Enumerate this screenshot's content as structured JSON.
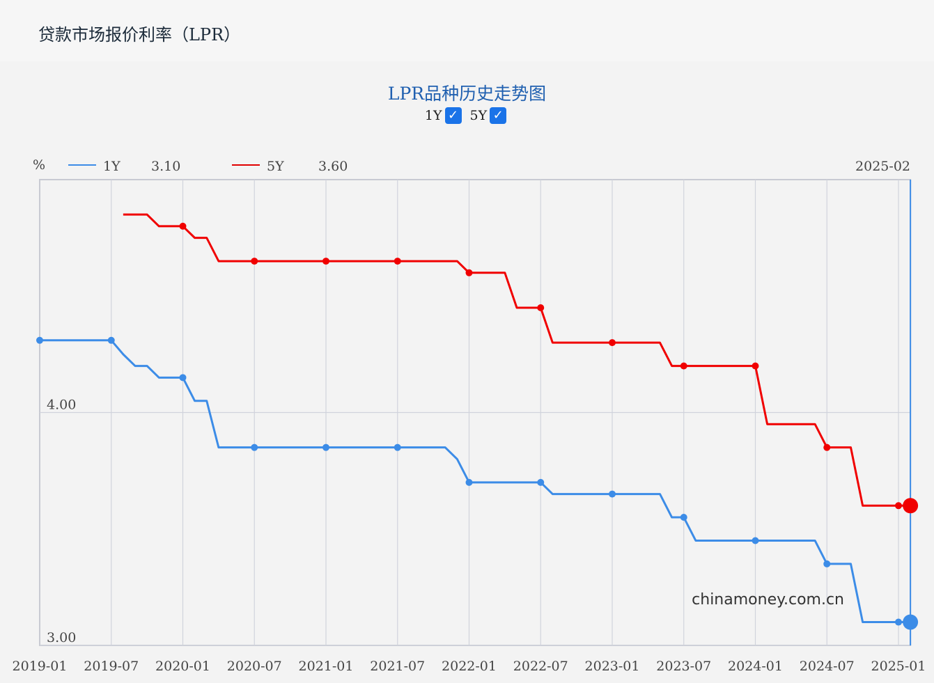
{
  "header": {
    "title": "贷款市场报价利率（LPR）"
  },
  "chart_title": "LPR品种历史走势图",
  "toggles": [
    {
      "label": "1Y",
      "checked": true
    },
    {
      "label": "5Y",
      "checked": true
    }
  ],
  "legend": {
    "unit": "%",
    "items": [
      {
        "name": "1Y",
        "value": "3.10",
        "color": "#3c8ce7"
      },
      {
        "name": "5Y",
        "value": "3.60",
        "color": "#f00000"
      }
    ],
    "hover_date": "2025-02"
  },
  "watermark": "chinamoney.com.cn",
  "chart_data": {
    "type": "line",
    "ylim": [
      3.0,
      5.0
    ],
    "yticks": [
      {
        "value": 4.0,
        "label": "4.00"
      },
      {
        "value": 3.0,
        "label": "3.00"
      }
    ],
    "xticks": [
      "2019-01",
      "2019-07",
      "2020-01",
      "2020-07",
      "2021-01",
      "2021-07",
      "2022-01",
      "2022-07",
      "2023-01",
      "2023-07",
      "2024-01",
      "2024-07",
      "2025-01"
    ],
    "x": [
      "2019-01",
      "2019-02",
      "2019-03",
      "2019-04",
      "2019-05",
      "2019-06",
      "2019-07",
      "2019-08",
      "2019-09",
      "2019-10",
      "2019-11",
      "2019-12",
      "2020-01",
      "2020-02",
      "2020-03",
      "2020-04",
      "2020-05",
      "2020-06",
      "2020-07",
      "2020-08",
      "2020-09",
      "2020-10",
      "2020-11",
      "2020-12",
      "2021-01",
      "2021-02",
      "2021-03",
      "2021-04",
      "2021-05",
      "2021-06",
      "2021-07",
      "2021-08",
      "2021-09",
      "2021-10",
      "2021-11",
      "2021-12",
      "2022-01",
      "2022-02",
      "2022-03",
      "2022-04",
      "2022-05",
      "2022-06",
      "2022-07",
      "2022-08",
      "2022-09",
      "2022-10",
      "2022-11",
      "2022-12",
      "2023-01",
      "2023-02",
      "2023-03",
      "2023-04",
      "2023-05",
      "2023-06",
      "2023-07",
      "2023-08",
      "2023-09",
      "2023-10",
      "2023-11",
      "2023-12",
      "2024-01",
      "2024-02",
      "2024-03",
      "2024-04",
      "2024-05",
      "2024-06",
      "2024-07",
      "2024-08",
      "2024-09",
      "2024-10",
      "2024-11",
      "2024-12",
      "2025-01",
      "2025-02"
    ],
    "series": [
      {
        "name": "1Y",
        "color": "#3c8ce7",
        "values": [
          4.31,
          4.31,
          4.31,
          4.31,
          4.31,
          4.31,
          4.31,
          4.25,
          4.2,
          4.2,
          4.15,
          4.15,
          4.15,
          4.05,
          4.05,
          3.85,
          3.85,
          3.85,
          3.85,
          3.85,
          3.85,
          3.85,
          3.85,
          3.85,
          3.85,
          3.85,
          3.85,
          3.85,
          3.85,
          3.85,
          3.85,
          3.85,
          3.85,
          3.85,
          3.85,
          3.8,
          3.7,
          3.7,
          3.7,
          3.7,
          3.7,
          3.7,
          3.7,
          3.65,
          3.65,
          3.65,
          3.65,
          3.65,
          3.65,
          3.65,
          3.65,
          3.65,
          3.65,
          3.55,
          3.55,
          3.45,
          3.45,
          3.45,
          3.45,
          3.45,
          3.45,
          3.45,
          3.45,
          3.45,
          3.45,
          3.45,
          3.35,
          3.35,
          3.35,
          3.1,
          3.1,
          3.1,
          3.1,
          3.1
        ]
      },
      {
        "name": "5Y",
        "color": "#f00000",
        "values": [
          null,
          null,
          null,
          null,
          null,
          null,
          null,
          4.85,
          4.85,
          4.85,
          4.8,
          4.8,
          4.8,
          4.75,
          4.75,
          4.65,
          4.65,
          4.65,
          4.65,
          4.65,
          4.65,
          4.65,
          4.65,
          4.65,
          4.65,
          4.65,
          4.65,
          4.65,
          4.65,
          4.65,
          4.65,
          4.65,
          4.65,
          4.65,
          4.65,
          4.65,
          4.6,
          4.6,
          4.6,
          4.6,
          4.45,
          4.45,
          4.45,
          4.3,
          4.3,
          4.3,
          4.3,
          4.3,
          4.3,
          4.3,
          4.3,
          4.3,
          4.3,
          4.2,
          4.2,
          4.2,
          4.2,
          4.2,
          4.2,
          4.2,
          4.2,
          3.95,
          3.95,
          3.95,
          3.95,
          3.95,
          3.85,
          3.85,
          3.85,
          3.6,
          3.6,
          3.6,
          3.6,
          3.6
        ]
      }
    ]
  }
}
